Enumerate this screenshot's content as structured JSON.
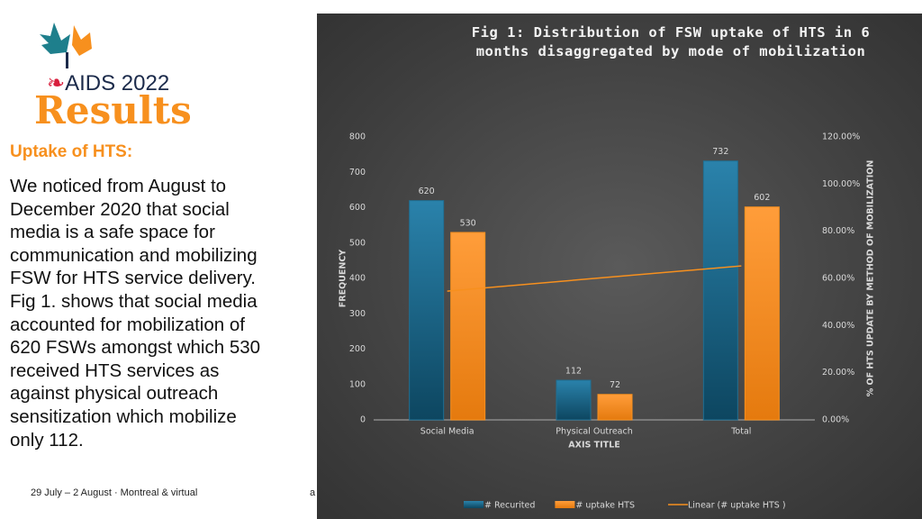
{
  "slide": {
    "conference": "AIDS 2022",
    "heading": "Results",
    "subheading": "Uptake of HTS:",
    "body_lines": [
      "We noticed from August to",
      "December 2020 that social",
      "media is a safe space for",
      "communication and mobilizing",
      "FSW for HTS service delivery.",
      "Fig 1. shows that social media",
      "accounted for mobilization of",
      "620 FSWs amongst which 530",
      "received HTS services as",
      "against physical outreach",
      "sensitization which mobilize",
      "only 112."
    ],
    "footer": "29 July – 2 August · Montreal & virtual",
    "footer_fragment": "a"
  },
  "chart_data": {
    "type": "bar",
    "title": "Fig 1: Distribution of FSW uptake of HTS in 6 months disaggregated by mode of mobilization",
    "categories": [
      "Social Media",
      "Physical Outreach",
      "Total"
    ],
    "x_label": "AXIS TITLE",
    "y_label": "FREQUENCY",
    "y2_label": "% OF HTS UPDATE BY METHOD OF MOBILIZATION",
    "ylim": [
      0,
      800
    ],
    "yticks": [
      0,
      100,
      200,
      300,
      400,
      500,
      600,
      700,
      800
    ],
    "y2lim": [
      0,
      120
    ],
    "y2ticks": [
      {
        "value": 0,
        "label": "0.00%"
      },
      {
        "value": 20,
        "label": "20.00%"
      },
      {
        "value": 40,
        "label": "40.00%"
      },
      {
        "value": 60,
        "label": "60.00%"
      },
      {
        "value": 80,
        "label": "80.00%"
      },
      {
        "value": 100,
        "label": "100.00%"
      },
      {
        "value": 120,
        "label": "120.00%"
      }
    ],
    "grid": false,
    "legend": "bottom",
    "series": [
      {
        "name": "# Recurited",
        "color": "#1f6f93",
        "values": [
          620,
          112,
          732
        ]
      },
      {
        "name": "# uptake HTS",
        "color": "#f7901e",
        "values": [
          530,
          72,
          602
        ]
      },
      {
        "name": "Linear (# uptake HTS )",
        "color": "#f7901e",
        "type": "line",
        "axis": "y2",
        "values": [
          54.6,
          60,
          65.3
        ]
      }
    ]
  }
}
